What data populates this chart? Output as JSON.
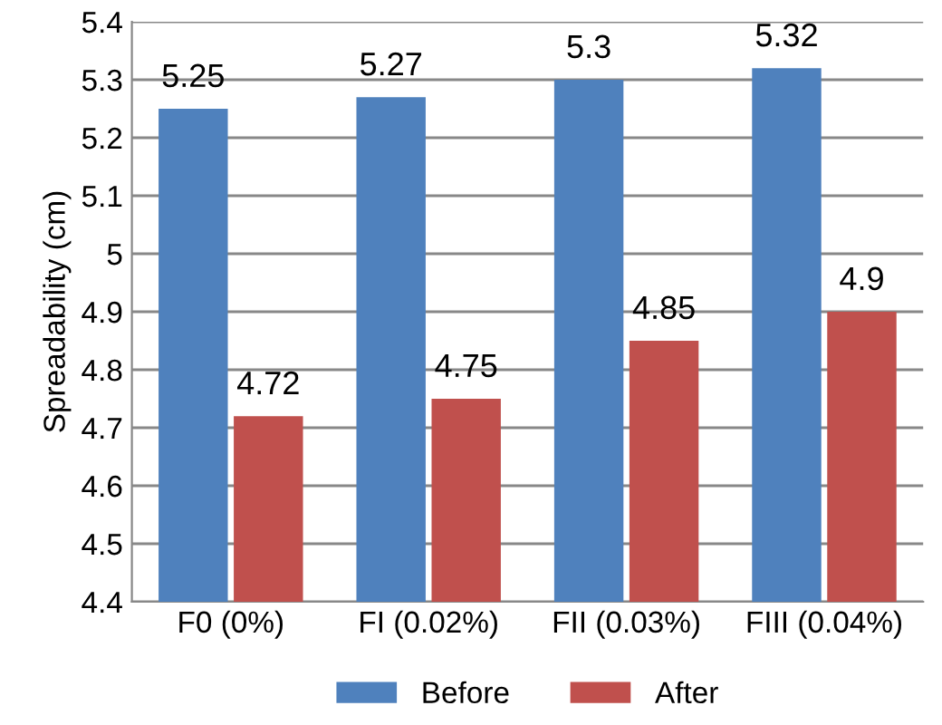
{
  "chart_data": {
    "type": "bar",
    "ylabel": "Spreadability (cm)",
    "categories": [
      "F0 (0%)",
      "FI (0.02%)",
      "FII (0.03%)",
      "FIII (0.04%)"
    ],
    "series": [
      {
        "name": "Before",
        "color": "#4f81bd",
        "values": [
          5.25,
          5.27,
          5.3,
          5.32
        ]
      },
      {
        "name": "After",
        "color": "#c0504d",
        "values": [
          4.72,
          4.75,
          4.85,
          4.9
        ]
      }
    ],
    "ylim": [
      4.4,
      5.4
    ],
    "yticks": [
      4.4,
      4.5,
      4.6,
      4.7,
      4.8,
      4.9,
      5,
      5.1,
      5.2,
      5.3,
      5.4
    ],
    "grid": "y",
    "legend": "bottom",
    "data_labels": true
  }
}
